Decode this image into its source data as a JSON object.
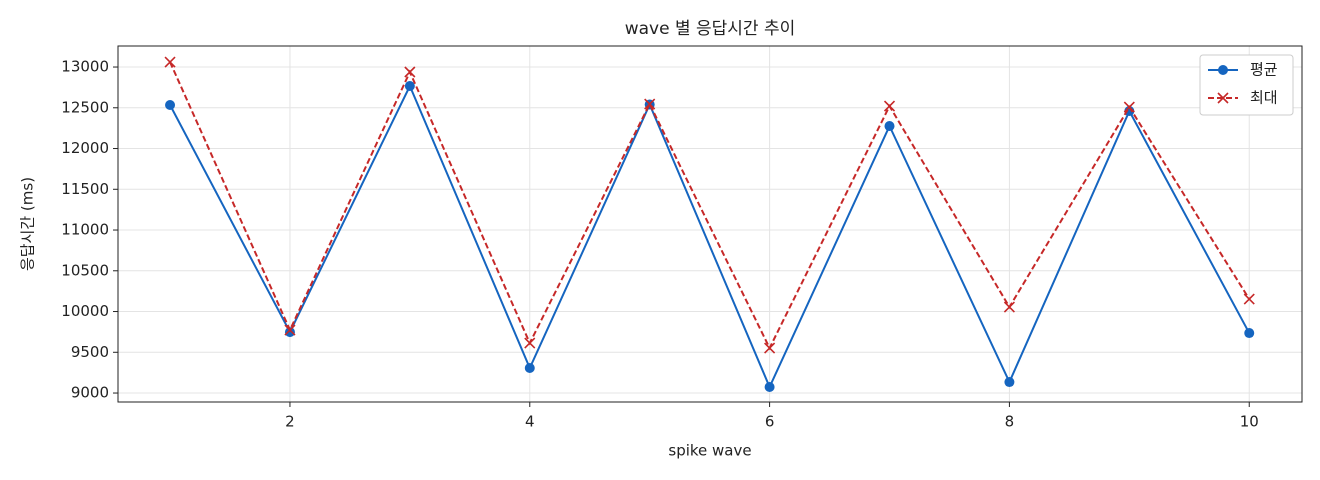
{
  "chart_data": {
    "type": "line",
    "title": "wave 별 응답시간 추이",
    "xlabel": "spike wave",
    "ylabel": "응답시간 (ms)",
    "x": [
      1,
      2,
      3,
      4,
      5,
      6,
      7,
      8,
      9,
      10
    ],
    "series": [
      {
        "name": "평균",
        "color": "#1565c0",
        "marker": "o",
        "linestyle": "solid",
        "values": [
          12534,
          9748,
          12767,
          9307,
          12540,
          9074,
          12276,
          9135,
          12460,
          9736
        ]
      },
      {
        "name": "최대",
        "color": "#c62828",
        "marker": "x",
        "linestyle": "dashed",
        "values": [
          13061,
          9773,
          12939,
          9613,
          12546,
          9552,
          12521,
          10055,
          12509,
          10153
        ]
      }
    ],
    "xlim": [
      0.566,
      10.44
    ],
    "xticks": [
      2,
      4,
      6,
      8,
      10
    ],
    "ylim": [
      8890,
      13258
    ],
    "yticks": [
      9000,
      9500,
      10000,
      10500,
      11000,
      11500,
      12000,
      12500,
      13000
    ],
    "grid": true,
    "legend": "upper right"
  }
}
